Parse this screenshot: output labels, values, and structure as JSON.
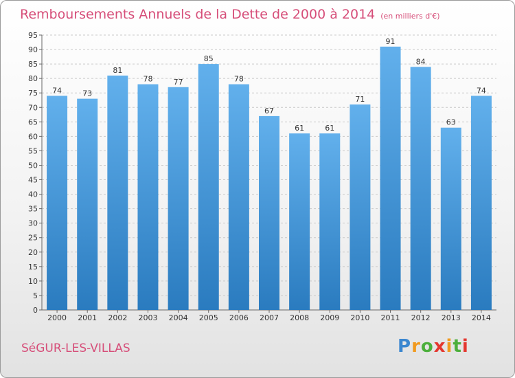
{
  "chart_data": {
    "type": "bar",
    "title": "Remboursements Annuels de la Dette de 2000 à 2014",
    "unit": "(en milliers d'€)",
    "categories": [
      "2000",
      "2001",
      "2002",
      "2003",
      "2004",
      "2005",
      "2006",
      "2007",
      "2008",
      "2009",
      "2010",
      "2011",
      "2012",
      "2013",
      "2014"
    ],
    "values": [
      74,
      73,
      81,
      78,
      77,
      85,
      78,
      67,
      61,
      61,
      71,
      91,
      84,
      63,
      74
    ],
    "ylim": [
      0,
      95
    ],
    "yticks": [
      0,
      5,
      10,
      15,
      20,
      25,
      30,
      35,
      40,
      45,
      50,
      55,
      60,
      65,
      70,
      75,
      80,
      85,
      90,
      95
    ],
    "grid": true,
    "xlabel": "",
    "ylabel": ""
  },
  "footer": {
    "city": "SéGUR-LES-VILLAS",
    "brand_letters": [
      "P",
      "r",
      "o",
      "x",
      "i",
      "t",
      "i"
    ]
  },
  "colors": {
    "title": "#d64e79",
    "bar_top": "#62b0ec",
    "bar_bottom": "#2a7bbf",
    "brand": [
      "#3a86cf",
      "#f19a1f",
      "#4caf3c",
      "#e4372f",
      "#f19a1f",
      "#4caf3c",
      "#e4372f"
    ]
  }
}
